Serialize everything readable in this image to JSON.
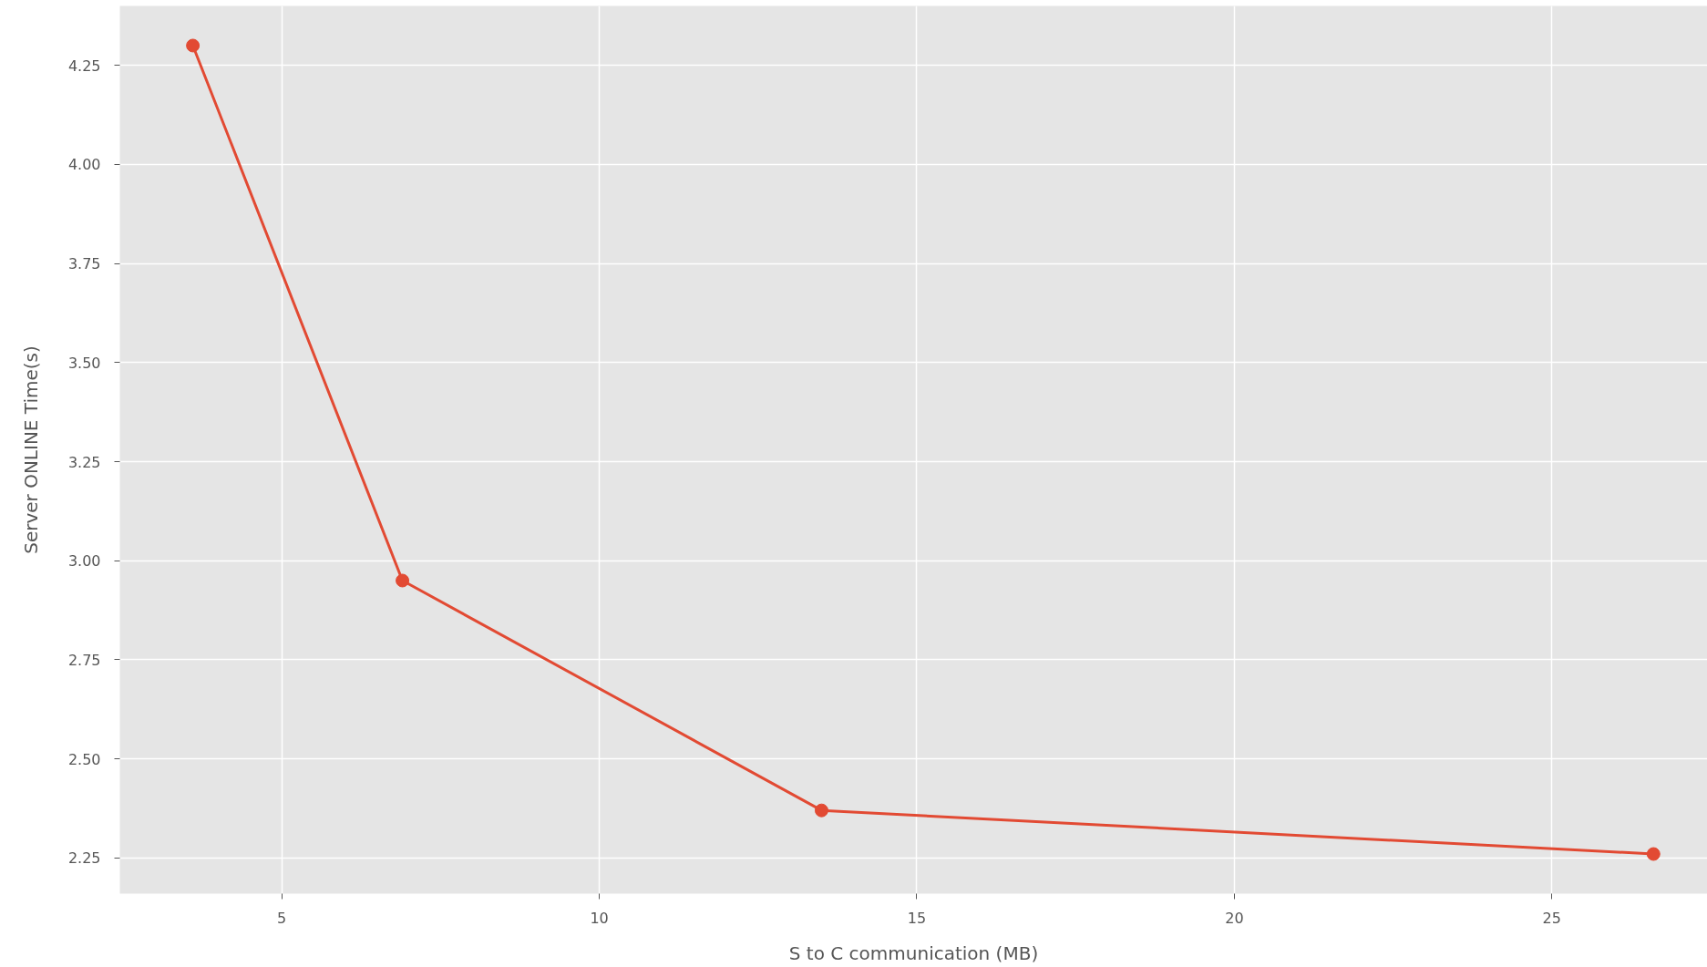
{
  "chart_data": {
    "type": "line",
    "xlabel": "S to C communication (MB)",
    "ylabel": "Server ONLINE Time(s)",
    "x": [
      3.6,
      6.9,
      13.5,
      26.6
    ],
    "series": [
      {
        "color": "#e24a33",
        "values": [
          4.3,
          2.95,
          2.37,
          2.26
        ]
      }
    ],
    "xlim": [
      2.45,
      27.45
    ],
    "ylim": [
      2.16,
      4.4
    ],
    "xticks": [
      5,
      10,
      15,
      20,
      25
    ],
    "yticks": [
      {
        "value": 2.25,
        "label": "2.25"
      },
      {
        "value": 2.5,
        "label": "2.50"
      },
      {
        "value": 2.75,
        "label": "2.75"
      },
      {
        "value": 3.0,
        "label": "3.00"
      },
      {
        "value": 3.25,
        "label": "3.25"
      },
      {
        "value": 3.5,
        "label": "3.50"
      },
      {
        "value": 3.75,
        "label": "3.75"
      },
      {
        "value": 4.0,
        "label": "4.00"
      },
      {
        "value": 4.25,
        "label": "4.25"
      }
    ],
    "grid": true,
    "marker": "circle",
    "line_style": "solid"
  }
}
